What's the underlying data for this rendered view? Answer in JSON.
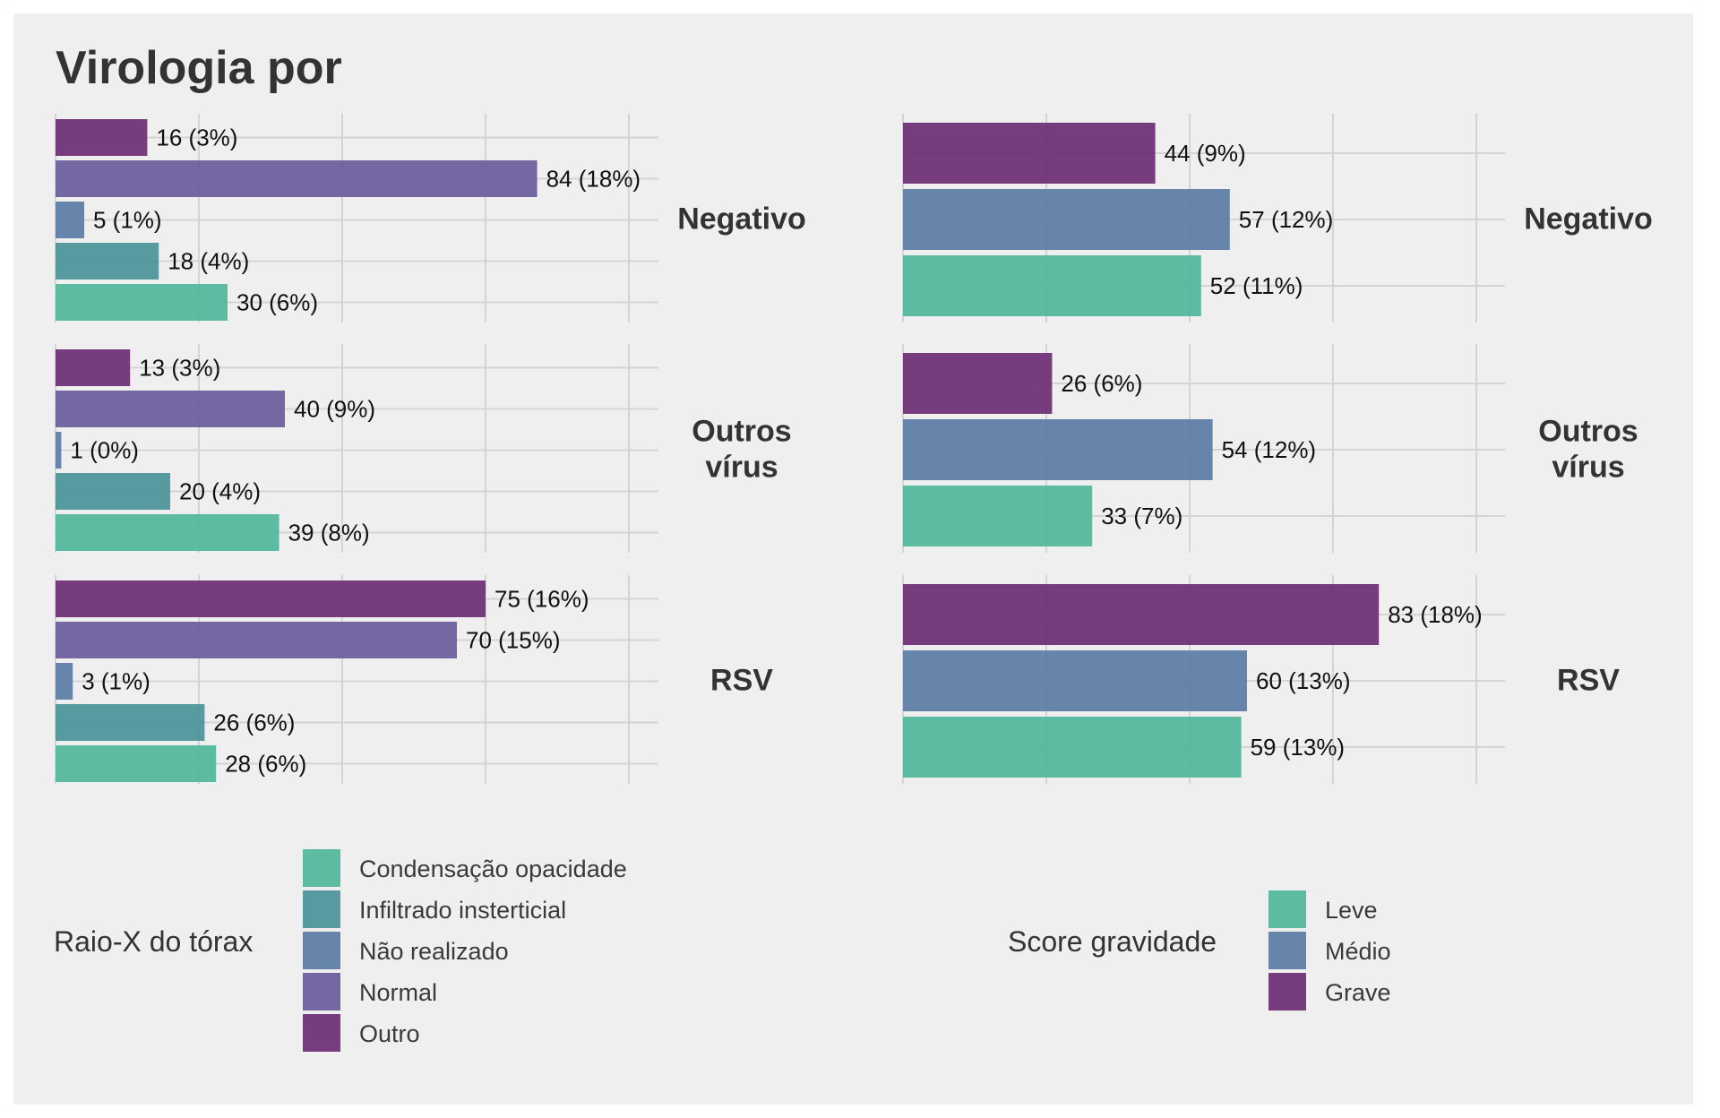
{
  "title": "Virologia por",
  "chart_data": [
    {
      "type": "bar",
      "orientation": "horizontal",
      "facets": [
        "Negativo",
        "Outros vírus",
        "RSV"
      ],
      "facet_labels": [
        [
          "Negativo"
        ],
        [
          "Outros",
          "vírus"
        ],
        [
          "RSV"
        ]
      ],
      "xlim": [
        0,
        105
      ],
      "gridlines": [
        0,
        25,
        50,
        75,
        100
      ],
      "grid": true,
      "legend_title": "Raio-X do tórax",
      "legend_position": "bottom",
      "categories": [
        "Condensação opacidade",
        "Infiltrado insterticial",
        "Não realizado",
        "Normal",
        "Outro"
      ],
      "colors": [
        "#4fb69a",
        "#4a9499",
        "#5b7ba4",
        "#6a5b9a",
        "#6b2d73"
      ],
      "bar_order_top_to_bottom": [
        "Outro",
        "Normal",
        "Não realizado",
        "Infiltrado insterticial",
        "Condensação opacidade"
      ],
      "values": {
        "Negativo": {
          "Outro": 16,
          "Normal": 84,
          "Não realizado": 5,
          "Infiltrado insterticial": 18,
          "Condensação opacidade": 30
        },
        "Outros vírus": {
          "Outro": 13,
          "Normal": 40,
          "Não realizado": 1,
          "Infiltrado insterticial": 20,
          "Condensação opacidade": 39
        },
        "RSV": {
          "Outro": 75,
          "Normal": 70,
          "Não realizado": 3,
          "Infiltrado insterticial": 26,
          "Condensação opacidade": 28
        }
      },
      "labels": {
        "Negativo": {
          "Outro": "16 (3%)",
          "Normal": "84 (18%)",
          "Não realizado": "5 (1%)",
          "Infiltrado insterticial": "18 (4%)",
          "Condensação opacidade": "30 (6%)"
        },
        "Outros vírus": {
          "Outro": "13 (3%)",
          "Normal": "40 (9%)",
          "Não realizado": "1 (0%)",
          "Infiltrado insterticial": "20 (4%)",
          "Condensação opacidade": "39 (8%)"
        },
        "RSV": {
          "Outro": "75 (16%)",
          "Normal": "70 (15%)",
          "Não realizado": "3 (1%)",
          "Infiltrado insterticial": "26 (6%)",
          "Condensação opacidade": "28 (6%)"
        }
      }
    },
    {
      "type": "bar",
      "orientation": "horizontal",
      "facets": [
        "Negativo",
        "Outros vírus",
        "RSV"
      ],
      "facet_labels": [
        [
          "Negativo"
        ],
        [
          "Outros",
          "vírus"
        ],
        [
          "RSV"
        ]
      ],
      "xlim": [
        0,
        105
      ],
      "gridlines": [
        0,
        25,
        50,
        75,
        100
      ],
      "grid": true,
      "legend_title": "Score gravidade",
      "legend_position": "bottom",
      "categories": [
        "Leve",
        "Médio",
        "Grave"
      ],
      "colors": [
        "#4fb69a",
        "#5b7ba4",
        "#6b2d73"
      ],
      "bar_order_top_to_bottom": [
        "Grave",
        "Médio",
        "Leve"
      ],
      "values": {
        "Negativo": {
          "Grave": 44,
          "Médio": 57,
          "Leve": 52
        },
        "Outros vírus": {
          "Grave": 26,
          "Médio": 54,
          "Leve": 33
        },
        "RSV": {
          "Grave": 83,
          "Médio": 60,
          "Leve": 59
        }
      },
      "labels": {
        "Negativo": {
          "Grave": "44 (9%)",
          "Médio": "57 (12%)",
          "Leve": "52 (11%)"
        },
        "Outros vírus": {
          "Grave": "26 (6%)",
          "Médio": "54 (12%)",
          "Leve": "33 (7%)"
        },
        "RSV": {
          "Grave": "83 (18%)",
          "Médio": "60 (13%)",
          "Leve": "59 (13%)"
        }
      }
    }
  ]
}
